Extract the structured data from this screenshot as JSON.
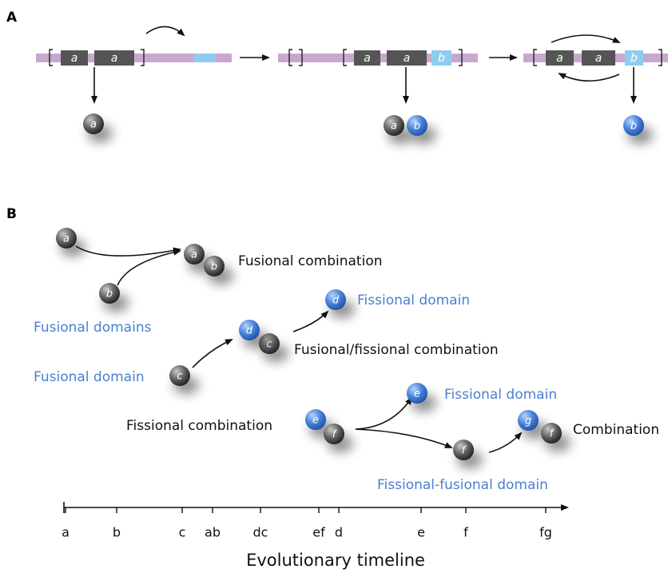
{
  "panel_a": {
    "label": "A",
    "boxes": [
      {
        "text": "a",
        "color": "#555555"
      },
      {
        "text": "a",
        "color": "#555555"
      },
      {
        "text": "a",
        "color": "#555555"
      },
      {
        "text": "a",
        "color": "#555555"
      },
      {
        "text": "b",
        "color": "#8ecdf0"
      },
      {
        "text": "a",
        "color": "#555555"
      },
      {
        "text": "a",
        "color": "#555555"
      },
      {
        "text": "b",
        "color": "#8ecdf0"
      }
    ],
    "spheres": [
      {
        "text": "a",
        "color": "gray"
      },
      {
        "text": "a",
        "color": "gray"
      },
      {
        "text": "b",
        "color": "blue"
      },
      {
        "text": "b",
        "color": "blue"
      }
    ]
  },
  "panel_b": {
    "label": "B",
    "spheres": [
      {
        "text": "a",
        "color": "gray"
      },
      {
        "text": "b",
        "color": "gray"
      },
      {
        "text": "a",
        "color": "gray"
      },
      {
        "text": "b",
        "color": "gray"
      },
      {
        "text": "c",
        "color": "gray"
      },
      {
        "text": "c",
        "color": "gray"
      },
      {
        "text": "d",
        "color": "blue"
      },
      {
        "text": "d",
        "color": "blue"
      },
      {
        "text": "e",
        "color": "blue"
      },
      {
        "text": "f",
        "color": "gray"
      },
      {
        "text": "e",
        "color": "blue"
      },
      {
        "text": "f",
        "color": "gray"
      },
      {
        "text": "g",
        "color": "blue"
      },
      {
        "text": "f",
        "color": "gray"
      }
    ],
    "labels": [
      {
        "text": "Fusional combination",
        "color": "#111111"
      },
      {
        "text": "Fissional domain",
        "color": "#4a7fd0"
      },
      {
        "text": "Fusional domains",
        "color": "#4a7fd0"
      },
      {
        "text": "Fusional domain",
        "color": "#4a7fd0"
      },
      {
        "text": "Fusional/fissional combination",
        "color": "#111111"
      },
      {
        "text": "Fissional combination",
        "color": "#111111"
      },
      {
        "text": "Fissional domain",
        "color": "#4a7fd0"
      },
      {
        "text": "Fissional-fusional domain",
        "color": "#4a7fd0"
      },
      {
        "text": "Combination",
        "color": "#111111"
      }
    ]
  },
  "timeline": {
    "ticks": [
      "a",
      "b",
      "c",
      "ab",
      "dc",
      "ef",
      "d",
      "e",
      "f",
      "fg"
    ],
    "title": "Evolutionary timeline"
  }
}
